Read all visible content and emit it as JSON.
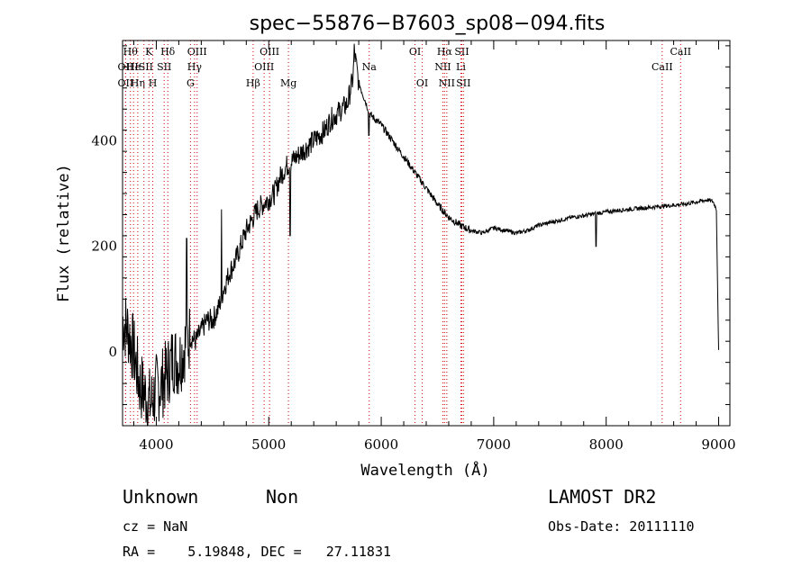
{
  "chart_data": {
    "type": "line",
    "title": "spec−55876−B7603_sp08−094.fits",
    "xlabel": "Wavelength (Å)",
    "ylabel": "Flux (relative)",
    "xlim": [
      3700,
      9100
    ],
    "ylim": [
      -140,
      590
    ],
    "x_ticks": [
      4000,
      5000,
      6000,
      7000,
      8000,
      9000
    ],
    "y_ticks": [
      0,
      200,
      400
    ],
    "grid": false,
    "line_color": "#000000",
    "marker_color": "#cc0000",
    "spectrum": {
      "x": [
        3700,
        3750,
        3800,
        3850,
        3900,
        3950,
        4000,
        4050,
        4100,
        4150,
        4200,
        4250,
        4300,
        4350,
        4400,
        4450,
        4500,
        4550,
        4600,
        4650,
        4700,
        4750,
        4800,
        4850,
        4900,
        4950,
        5000,
        5050,
        5100,
        5150,
        5200,
        5250,
        5300,
        5350,
        5400,
        5450,
        5500,
        5550,
        5600,
        5650,
        5700,
        5750,
        5760,
        5800,
        5850,
        5900,
        5950,
        6000,
        6100,
        6200,
        6300,
        6400,
        6500,
        6600,
        6700,
        6800,
        6900,
        7000,
        7100,
        7200,
        7300,
        7400,
        7500,
        7600,
        7700,
        7800,
        7900,
        8000,
        8100,
        8200,
        8300,
        8400,
        8500,
        8600,
        8700,
        8800,
        8900,
        8950,
        8980,
        9000
      ],
      "y": [
        60,
        40,
        0,
        -60,
        -80,
        -100,
        -70,
        -60,
        -40,
        -10,
        -20,
        10,
        30,
        20,
        40,
        60,
        60,
        80,
        120,
        150,
        170,
        200,
        230,
        250,
        270,
        280,
        290,
        300,
        330,
        350,
        360,
        370,
        380,
        390,
        400,
        410,
        420,
        440,
        450,
        460,
        470,
        520,
        570,
        510,
        480,
        450,
        440,
        430,
        400,
        370,
        340,
        310,
        280,
        255,
        240,
        230,
        225,
        235,
        230,
        225,
        230,
        240,
        245,
        250,
        255,
        258,
        262,
        265,
        268,
        270,
        272,
        274,
        276,
        278,
        280,
        284,
        288,
        285,
        270,
        0
      ],
      "spikes": [
        {
          "x": 4270,
          "y": 215
        },
        {
          "x": 4580,
          "y": 270
        },
        {
          "x": 5190,
          "y": 220
        },
        {
          "x": 5890,
          "y": 410
        },
        {
          "x": 6560,
          "y": 260
        },
        {
          "x": 6870,
          "y": 230
        },
        {
          "x": 7910,
          "y": 200
        }
      ]
    },
    "lines": [
      {
        "x": 3727,
        "label": "OII",
        "row": 1
      },
      {
        "x": 3727,
        "label": "OII",
        "row": 2
      },
      {
        "x": 3770,
        "label": "Hθ",
        "row": 0
      },
      {
        "x": 3798,
        "label": "He",
        "row": 1
      },
      {
        "x": 3835,
        "label": "Hη",
        "row": 2
      },
      {
        "x": 3890,
        "label": "ISII",
        "row": 1
      },
      {
        "x": 3934,
        "label": "K",
        "row": 0
      },
      {
        "x": 3969,
        "label": "H",
        "row": 2
      },
      {
        "x": 4070,
        "label": "SII",
        "row": 1
      },
      {
        "x": 4102,
        "label": "Hδ",
        "row": 0
      },
      {
        "x": 4304,
        "label": "G",
        "row": 2
      },
      {
        "x": 4340,
        "label": "Hγ",
        "row": 1
      },
      {
        "x": 4363,
        "label": "OIII",
        "row": 0
      },
      {
        "x": 4861,
        "label": "Hβ",
        "row": 2
      },
      {
        "x": 4959,
        "label": "OIII",
        "row": 1
      },
      {
        "x": 5007,
        "label": "OIII",
        "row": 0
      },
      {
        "x": 5175,
        "label": "Mg",
        "row": 2
      },
      {
        "x": 5893,
        "label": "Na",
        "row": 1
      },
      {
        "x": 6300,
        "label": "OI",
        "row": 0
      },
      {
        "x": 6364,
        "label": "OI",
        "row": 2
      },
      {
        "x": 6548,
        "label": "NII",
        "row": 1
      },
      {
        "x": 6563,
        "label": "Hα",
        "row": 0
      },
      {
        "x": 6583,
        "label": "NII",
        "row": 2
      },
      {
        "x": 6708,
        "label": "Li",
        "row": 1
      },
      {
        "x": 6716,
        "label": "SII",
        "row": 0
      },
      {
        "x": 6731,
        "label": "SII",
        "row": 2
      },
      {
        "x": 8498,
        "label": "CaII",
        "row": 1
      },
      {
        "x": 8662,
        "label": "CaII",
        "row": 0
      }
    ]
  },
  "info": {
    "class": "Unknown",
    "subclass": "Non",
    "survey": "LAMOST DR2",
    "cz": "cz = NaN",
    "obs_date": "Obs-Date: 20111110",
    "coords": "RA =    5.19848, DEC =   27.11831"
  }
}
